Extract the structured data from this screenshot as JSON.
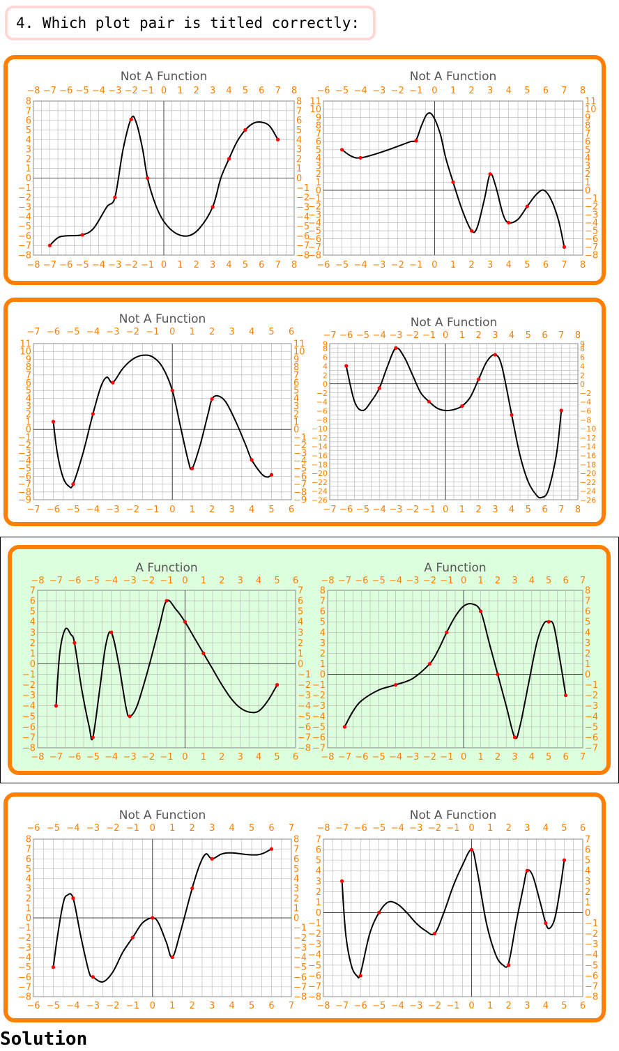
{
  "question": {
    "text": "4. Which plot pair is titled correctly:"
  },
  "solution_label": "Solution",
  "colors": {
    "panel_border": "#ff7f00",
    "panel_selected_bg": "#ddffdd",
    "axis_labels": "#ff8000",
    "grid": "#b0b0b0",
    "curve": "#000000",
    "points": "#ff0000",
    "title": "#555555"
  },
  "selected_pair_index": 2,
  "chart_data": [
    {
      "type": "line",
      "title": "Not A Function",
      "xlim": [
        -8,
        8
      ],
      "ylim": [
        -8,
        8
      ],
      "xticks": [
        -8,
        -7,
        -6,
        -5,
        -4,
        -3,
        -2,
        -1,
        0,
        1,
        2,
        3,
        4,
        5,
        6,
        7,
        8
      ],
      "yticks": [
        -8,
        -7,
        -6,
        -5,
        -4,
        -3,
        -2,
        -1,
        0,
        1,
        2,
        3,
        4,
        5,
        6,
        7,
        8
      ],
      "curve": [
        [
          -7,
          -7
        ],
        [
          -6.5,
          -6.2
        ],
        [
          -6,
          -6
        ],
        [
          -5,
          -5.9
        ],
        [
          -4.3,
          -5.2
        ],
        [
          -3.5,
          -3
        ],
        [
          -3,
          -2
        ],
        [
          -2.5,
          3
        ],
        [
          -2,
          6.2
        ],
        [
          -1.7,
          5.8
        ],
        [
          -1.3,
          3
        ],
        [
          -1,
          0
        ],
        [
          -0.5,
          -2.8
        ],
        [
          0,
          -4.5
        ],
        [
          0.7,
          -5.7
        ],
        [
          1.5,
          -6
        ],
        [
          2.2,
          -5.2
        ],
        [
          3,
          -3
        ],
        [
          3.5,
          0
        ],
        [
          4,
          2
        ],
        [
          4.5,
          3.8
        ],
        [
          5,
          5
        ],
        [
          5.5,
          5.7
        ],
        [
          6,
          5.8
        ],
        [
          6.5,
          5.4
        ],
        [
          7,
          4
        ]
      ],
      "points": [
        [
          -7,
          -7
        ],
        [
          -5,
          -5.9
        ],
        [
          -3,
          -2
        ],
        [
          -2,
          6.1
        ],
        [
          -1,
          0
        ],
        [
          3,
          -3
        ],
        [
          4,
          2
        ],
        [
          5,
          5
        ],
        [
          7,
          4
        ]
      ]
    },
    {
      "type": "line",
      "title": "Not A Function",
      "xlim": [
        -6,
        8
      ],
      "ylim": [
        -8,
        11
      ],
      "xticks": [
        -6,
        -5,
        -4,
        -3,
        -2,
        -1,
        0,
        1,
        2,
        3,
        4,
        5,
        6,
        7,
        8
      ],
      "yticks": [
        -8,
        -7,
        -6,
        -5,
        -4,
        -3,
        -2,
        -1,
        0,
        1,
        2,
        3,
        4,
        5,
        6,
        7,
        8,
        9,
        10,
        11
      ],
      "curve": [
        [
          -5,
          5
        ],
        [
          -4.5,
          4.2
        ],
        [
          -4,
          4
        ],
        [
          -3,
          4.6
        ],
        [
          -2,
          5.4
        ],
        [
          -1.3,
          6
        ],
        [
          -1,
          6.2
        ],
        [
          -0.7,
          8
        ],
        [
          -0.4,
          9.4
        ],
        [
          -0.1,
          9.2
        ],
        [
          0.3,
          7
        ],
        [
          0.6,
          4
        ],
        [
          1,
          1
        ],
        [
          1.5,
          -2.5
        ],
        [
          2,
          -5
        ],
        [
          2.3,
          -4.6
        ],
        [
          2.7,
          -1
        ],
        [
          3,
          2
        ],
        [
          3.3,
          0.5
        ],
        [
          3.7,
          -3
        ],
        [
          4,
          -4
        ],
        [
          4.5,
          -3.6
        ],
        [
          5,
          -2
        ],
        [
          5.5,
          -0.5
        ],
        [
          5.9,
          0
        ],
        [
          6.3,
          -1.2
        ],
        [
          6.7,
          -3.8
        ],
        [
          7,
          -7
        ]
      ],
      "points": [
        [
          -5,
          5
        ],
        [
          -4,
          4
        ],
        [
          -1,
          6.1
        ],
        [
          1,
          1
        ],
        [
          2,
          -5
        ],
        [
          3,
          2
        ],
        [
          4,
          -4
        ],
        [
          5,
          -2
        ],
        [
          7,
          -7
        ]
      ]
    },
    {
      "type": "line",
      "title": "Not A Function",
      "xlim": [
        -7,
        6
      ],
      "ylim": [
        -9,
        11
      ],
      "xticks": [
        -7,
        -6,
        -5,
        -4,
        -3,
        -2,
        -1,
        0,
        1,
        2,
        3,
        4,
        5,
        6
      ],
      "yticks": [
        -9,
        -8,
        -7,
        -6,
        -5,
        -4,
        -3,
        -2,
        -1,
        0,
        1,
        2,
        3,
        4,
        5,
        6,
        7,
        8,
        9,
        10,
        11
      ],
      "curve": [
        [
          -6,
          1
        ],
        [
          -5.8,
          -3
        ],
        [
          -5.5,
          -6.2
        ],
        [
          -5.2,
          -7.3
        ],
        [
          -5,
          -7
        ],
        [
          -4.5,
          -3
        ],
        [
          -4,
          2
        ],
        [
          -3.6,
          5.5
        ],
        [
          -3.3,
          6.7
        ],
        [
          -3,
          6
        ],
        [
          -2.5,
          7.8
        ],
        [
          -2,
          9
        ],
        [
          -1.5,
          9.5
        ],
        [
          -1,
          9.3
        ],
        [
          -0.5,
          8
        ],
        [
          0,
          5
        ],
        [
          0.4,
          0.5
        ],
        [
          0.8,
          -4
        ],
        [
          1,
          -5
        ],
        [
          1.4,
          -2
        ],
        [
          1.8,
          2
        ],
        [
          2,
          3.9
        ],
        [
          2.3,
          4.3
        ],
        [
          2.7,
          3.5
        ],
        [
          3.2,
          1
        ],
        [
          3.7,
          -2
        ],
        [
          4,
          -3.9
        ],
        [
          4.5,
          -5.7
        ],
        [
          4.8,
          -6.1
        ],
        [
          5,
          -5.8
        ]
      ],
      "points": [
        [
          -6,
          1
        ],
        [
          -5,
          -7
        ],
        [
          -4,
          2
        ],
        [
          -3,
          6
        ],
        [
          0,
          5
        ],
        [
          1,
          -5
        ],
        [
          2,
          3.9
        ],
        [
          4,
          -3.9
        ],
        [
          5,
          -5.8
        ]
      ]
    },
    {
      "type": "line",
      "title": "Not A Function",
      "xlim": [
        -7,
        8
      ],
      "ylim": [
        -26,
        9
      ],
      "xticks": [
        -7,
        -6,
        -5,
        -4,
        -3,
        -2,
        -1,
        0,
        1,
        2,
        3,
        4,
        5,
        6,
        7,
        8
      ],
      "yticks": [
        -26,
        -24,
        -22,
        -20,
        -18,
        -16,
        -14,
        -12,
        -10,
        -8,
        -6,
        -4,
        -2,
        0,
        2,
        4,
        6,
        8,
        9
      ],
      "curve": [
        [
          -6,
          4
        ],
        [
          -5.5,
          -4
        ],
        [
          -5,
          -6
        ],
        [
          -4.5,
          -4
        ],
        [
          -4,
          -1
        ],
        [
          -3.5,
          4
        ],
        [
          -3,
          8
        ],
        [
          -2.5,
          6
        ],
        [
          -2,
          2
        ],
        [
          -1.5,
          -2
        ],
        [
          -1,
          -4
        ],
        [
          -0.5,
          -5.5
        ],
        [
          0,
          -6
        ],
        [
          0.5,
          -5.8
        ],
        [
          1,
          -5
        ],
        [
          1.5,
          -3
        ],
        [
          2,
          1
        ],
        [
          2.5,
          5
        ],
        [
          3,
          6.5
        ],
        [
          3.4,
          4
        ],
        [
          4,
          -7
        ],
        [
          4.5,
          -16
        ],
        [
          5,
          -22
        ],
        [
          5.5,
          -25
        ],
        [
          5.8,
          -25.5
        ],
        [
          6.2,
          -24
        ],
        [
          6.7,
          -16
        ],
        [
          7,
          -6
        ]
      ],
      "points": [
        [
          -6,
          4
        ],
        [
          -4,
          -1
        ],
        [
          -3,
          8
        ],
        [
          -1,
          -4
        ],
        [
          1,
          -5
        ],
        [
          2,
          1
        ],
        [
          3,
          6.5
        ],
        [
          4,
          -7
        ],
        [
          7,
          -6
        ]
      ]
    },
    {
      "type": "line",
      "title": "A Function",
      "xlim": [
        -8,
        6
      ],
      "ylim": [
        -8,
        7
      ],
      "xticks": [
        -8,
        -7,
        -6,
        -5,
        -4,
        -3,
        -2,
        -1,
        0,
        1,
        2,
        3,
        4,
        5,
        6
      ],
      "yticks": [
        -8,
        -7,
        -6,
        -5,
        -4,
        -3,
        -2,
        -1,
        0,
        1,
        2,
        3,
        4,
        5,
        6,
        7
      ],
      "curve": [
        [
          -7,
          -4
        ],
        [
          -6.8,
          1
        ],
        [
          -6.5,
          3.3
        ],
        [
          -6.2,
          2.8
        ],
        [
          -6,
          2
        ],
        [
          -5.6,
          -2.5
        ],
        [
          -5.2,
          -6
        ],
        [
          -5,
          -7
        ],
        [
          -4.6,
          -2
        ],
        [
          -4.3,
          1.8
        ],
        [
          -4,
          3
        ],
        [
          -3.6,
          0
        ],
        [
          -3.2,
          -4.2
        ],
        [
          -3,
          -5
        ],
        [
          -2.6,
          -4
        ],
        [
          -2,
          -0.5
        ],
        [
          -1.4,
          3.5
        ],
        [
          -1,
          6
        ],
        [
          -0.5,
          5.2
        ],
        [
          0,
          4
        ],
        [
          0.5,
          2.5
        ],
        [
          1,
          1
        ],
        [
          1.5,
          -0.5
        ],
        [
          2,
          -2
        ],
        [
          2.5,
          -3.3
        ],
        [
          3,
          -4.2
        ],
        [
          3.5,
          -4.6
        ],
        [
          4,
          -4.5
        ],
        [
          4.5,
          -3.5
        ],
        [
          5,
          -2
        ]
      ],
      "points": [
        [
          -7,
          -4
        ],
        [
          -6,
          2
        ],
        [
          -5,
          -7
        ],
        [
          -4,
          3
        ],
        [
          -3,
          -5
        ],
        [
          -1,
          6
        ],
        [
          0,
          4
        ],
        [
          1,
          1
        ],
        [
          5,
          -2
        ]
      ]
    },
    {
      "type": "line",
      "title": "A Function",
      "xlim": [
        -8,
        7
      ],
      "ylim": [
        -7,
        8
      ],
      "xticks": [
        -8,
        -7,
        -6,
        -5,
        -4,
        -3,
        -2,
        -1,
        0,
        1,
        2,
        3,
        4,
        5,
        6,
        7
      ],
      "yticks": [
        -7,
        -6,
        -5,
        -4,
        -3,
        -2,
        -1,
        0,
        1,
        2,
        3,
        4,
        5,
        6,
        7,
        8
      ],
      "curve": [
        [
          -7,
          -5
        ],
        [
          -6.5,
          -3.5
        ],
        [
          -6,
          -2.5
        ],
        [
          -5,
          -1.5
        ],
        [
          -4,
          -1
        ],
        [
          -3,
          -0.4
        ],
        [
          -2,
          1
        ],
        [
          -1.5,
          2.3
        ],
        [
          -1,
          4
        ],
        [
          -0.5,
          5.5
        ],
        [
          0,
          6.5
        ],
        [
          0.5,
          6.7
        ],
        [
          1,
          6
        ],
        [
          1.5,
          3
        ],
        [
          2,
          0
        ],
        [
          2.5,
          -3
        ],
        [
          3,
          -6
        ],
        [
          3.3,
          -5
        ],
        [
          3.8,
          -1
        ],
        [
          4.3,
          3
        ],
        [
          4.7,
          4.8
        ],
        [
          5,
          5
        ],
        [
          5.3,
          4.6
        ],
        [
          5.7,
          1
        ],
        [
          6,
          -2
        ]
      ],
      "points": [
        [
          -7,
          -5
        ],
        [
          -4,
          -1
        ],
        [
          -2,
          1
        ],
        [
          -1,
          4
        ],
        [
          1,
          6
        ],
        [
          2,
          0
        ],
        [
          3,
          -6
        ],
        [
          5,
          5
        ],
        [
          6,
          -2
        ]
      ]
    },
    {
      "type": "line",
      "title": "Not A Function",
      "xlim": [
        -6,
        7
      ],
      "ylim": [
        -8,
        8
      ],
      "xticks": [
        -6,
        -5,
        -4,
        -3,
        -2,
        -1,
        0,
        1,
        2,
        3,
        4,
        5,
        6,
        7
      ],
      "yticks": [
        -8,
        -7,
        -6,
        -5,
        -4,
        -3,
        -2,
        -1,
        0,
        1,
        2,
        3,
        4,
        5,
        6,
        7,
        8
      ],
      "curve": [
        [
          -5,
          -5
        ],
        [
          -4.8,
          -2
        ],
        [
          -4.5,
          1.5
        ],
        [
          -4.3,
          2.3
        ],
        [
          -4,
          2
        ],
        [
          -3.6,
          -2
        ],
        [
          -3.2,
          -5.5
        ],
        [
          -3,
          -6
        ],
        [
          -2.5,
          -6.5
        ],
        [
          -2,
          -5.5
        ],
        [
          -1.5,
          -3.5
        ],
        [
          -1,
          -2
        ],
        [
          -0.5,
          -0.5
        ],
        [
          0,
          0
        ],
        [
          0.3,
          -0.5
        ],
        [
          0.7,
          -2.5
        ],
        [
          1,
          -4
        ],
        [
          1.4,
          -1.5
        ],
        [
          2,
          3
        ],
        [
          2.4,
          5.5
        ],
        [
          2.7,
          6.5
        ],
        [
          3,
          6
        ],
        [
          3.5,
          6.5
        ],
        [
          4,
          6.6
        ],
        [
          5,
          6.4
        ],
        [
          5.5,
          6.5
        ],
        [
          6,
          7
        ]
      ],
      "points": [
        [
          -5,
          -5
        ],
        [
          -4,
          2
        ],
        [
          -3,
          -6
        ],
        [
          -1,
          -2
        ],
        [
          0,
          0
        ],
        [
          1,
          -4
        ],
        [
          2,
          3
        ],
        [
          3,
          6
        ],
        [
          6,
          7
        ]
      ]
    },
    {
      "type": "line",
      "title": "Not A Function",
      "xlim": [
        -8,
        6
      ],
      "ylim": [
        -8,
        7
      ],
      "xticks": [
        -8,
        -7,
        -6,
        -5,
        -4,
        -3,
        -2,
        -1,
        0,
        1,
        2,
        3,
        4,
        5,
        6
      ],
      "yticks": [
        -8,
        -7,
        -6,
        -5,
        -4,
        -3,
        -2,
        -1,
        0,
        1,
        2,
        3,
        4,
        5,
        6,
        7
      ],
      "curve": [
        [
          -7,
          3
        ],
        [
          -6.8,
          -2
        ],
        [
          -6.5,
          -5
        ],
        [
          -6.2,
          -6
        ],
        [
          -6,
          -5.8
        ],
        [
          -5.5,
          -2
        ],
        [
          -5,
          0
        ],
        [
          -4.5,
          1
        ],
        [
          -4,
          0.8
        ],
        [
          -3.5,
          0
        ],
        [
          -3,
          -1
        ],
        [
          -2.5,
          -1.7
        ],
        [
          -2,
          -2
        ],
        [
          -1.5,
          0
        ],
        [
          -1,
          2.5
        ],
        [
          -0.5,
          4.5
        ],
        [
          0,
          6
        ],
        [
          0.3,
          4
        ],
        [
          0.8,
          -1
        ],
        [
          1.3,
          -4
        ],
        [
          1.7,
          -5
        ],
        [
          2,
          -4.8
        ],
        [
          2.4,
          -1
        ],
        [
          2.8,
          2.5
        ],
        [
          3,
          4
        ],
        [
          3.3,
          3.5
        ],
        [
          3.7,
          1
        ],
        [
          4,
          -1
        ],
        [
          4.2,
          -1.5
        ],
        [
          4.5,
          -0.5
        ],
        [
          4.8,
          2.5
        ],
        [
          5,
          5
        ]
      ],
      "points": [
        [
          -7,
          3
        ],
        [
          -6,
          -6
        ],
        [
          -5,
          0
        ],
        [
          -2,
          -2
        ],
        [
          0,
          6
        ],
        [
          2,
          -5
        ],
        [
          3,
          4
        ],
        [
          4,
          -1
        ],
        [
          5,
          5
        ]
      ]
    }
  ]
}
